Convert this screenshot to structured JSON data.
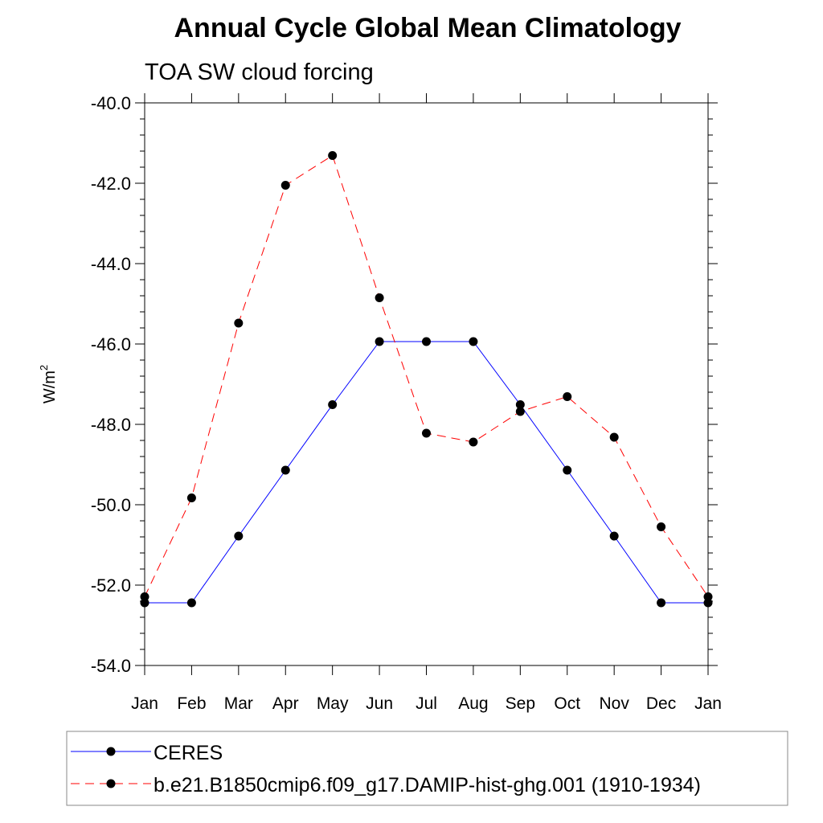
{
  "chart_data": {
    "type": "line",
    "title": "Annual Cycle Global Mean Climatology",
    "subtitle": "TOA SW cloud forcing",
    "ylabel": "W/m",
    "ylabel_sup": "2",
    "xlabel": "",
    "categories": [
      "Jan",
      "Feb",
      "Mar",
      "Apr",
      "May",
      "Jun",
      "Jul",
      "Aug",
      "Sep",
      "Oct",
      "Nov",
      "Dec",
      "Jan"
    ],
    "ylim": [
      -54.0,
      -40.0
    ],
    "yticks": [
      "-40.0",
      "-42.0",
      "-44.0",
      "-46.0",
      "-48.0",
      "-50.0",
      "-52.0",
      "-54.0"
    ],
    "yticks_values": [
      -40,
      -42,
      -44,
      -46,
      -48,
      -50,
      -52,
      -54
    ],
    "grid": false,
    "legend_position": "bottom",
    "series": [
      {
        "name": "CERES",
        "color": "#0000ff",
        "dash": "solid",
        "values": [
          -52.44,
          -52.44,
          -50.78,
          -49.14,
          -47.51,
          -45.94,
          -45.94,
          -45.94,
          -47.51,
          -49.14,
          -50.78,
          -52.44,
          -52.44
        ]
      },
      {
        "name": "b.e21.B1850cmip6.f09_g17.DAMIP-hist-ghg.001 (1910-1934)",
        "color": "#ff0000",
        "dash": "dashed",
        "values": [
          -52.29,
          -49.83,
          -45.48,
          -42.05,
          -41.31,
          -44.85,
          -48.22,
          -48.44,
          -47.68,
          -47.31,
          -48.32,
          -50.55,
          -52.29
        ]
      }
    ]
  }
}
